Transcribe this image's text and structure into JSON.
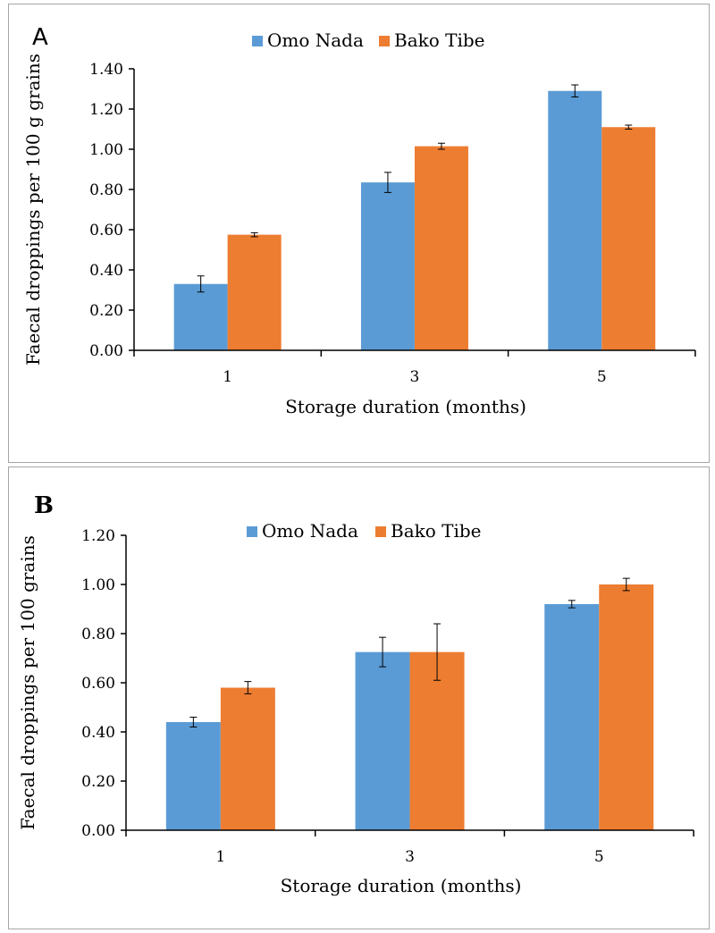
{
  "chart_data": [
    {
      "type": "bar",
      "panel_label": "A",
      "categories": [
        "1",
        "3",
        "5"
      ],
      "series": [
        {
          "name": "Omo Nada",
          "color": "#5b9bd5",
          "values": [
            0.33,
            0.835,
            1.29
          ],
          "errors": [
            0.04,
            0.05,
            0.03
          ]
        },
        {
          "name": "Bako Tibe",
          "color": "#ed7d31",
          "values": [
            0.575,
            1.015,
            1.11
          ],
          "errors": [
            0.01,
            0.015,
            0.01
          ]
        }
      ],
      "xlabel": "Storage duration (months)",
      "ylabel": "Faecal droppings per 100 g grains",
      "ylim": [
        0,
        1.4
      ],
      "yticks": [
        "0.00",
        "0.20",
        "0.40",
        "0.60",
        "0.80",
        "1.00",
        "1.20",
        "1.40"
      ],
      "legend_position": "top-center",
      "grid": false
    },
    {
      "type": "bar",
      "panel_label": "B",
      "categories": [
        "1",
        "3",
        "5"
      ],
      "series": [
        {
          "name": "Omo Nada",
          "color": "#5b9bd5",
          "values": [
            0.44,
            0.725,
            0.92
          ],
          "errors": [
            0.02,
            0.06,
            0.015
          ]
        },
        {
          "name": "Bako Tibe",
          "color": "#ed7d31",
          "values": [
            0.58,
            0.725,
            1.0
          ],
          "errors": [
            0.025,
            0.115,
            0.025
          ]
        }
      ],
      "xlabel": "Storage duration (months)",
      "ylabel": "Faecal droppings per 100 grains",
      "ylim": [
        0,
        1.2
      ],
      "yticks": [
        "0.00",
        "0.20",
        "0.40",
        "0.60",
        "0.80",
        "1.00",
        "1.20"
      ],
      "legend_position": "top-center",
      "grid": false
    }
  ]
}
